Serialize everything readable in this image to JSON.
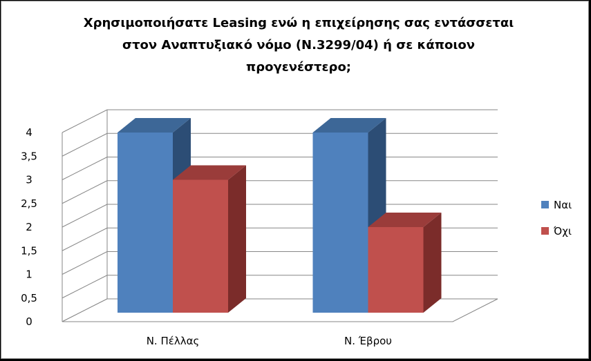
{
  "chart_data": {
    "type": "bar",
    "title_lines": [
      "Χρησιμοποιήσατε Leasing ενώ η επιχείρησης σας εντάσσεται",
      "στον Αναπτυξιακό νόμο (Ν.3299/04) ή σε κάποιον",
      "προγενέστερο;"
    ],
    "categories": [
      "Ν. Πέλλας",
      "Ν. Έβρου"
    ],
    "series": [
      {
        "name": "Ναι",
        "values": [
          4,
          4
        ],
        "color": "#4f81bd",
        "top": "#3d6797",
        "side": "#2c4d75"
      },
      {
        "name": "Όχι",
        "values": [
          3,
          2
        ],
        "color": "#c0504d",
        "top": "#9a3c3a",
        "side": "#7b2c2a"
      }
    ],
    "ylim": [
      0,
      4
    ],
    "yticks": [
      "0",
      "0,5",
      "1",
      "1,5",
      "2",
      "2,5",
      "3",
      "3,5",
      "4"
    ],
    "grid": true,
    "legend": "right"
  }
}
